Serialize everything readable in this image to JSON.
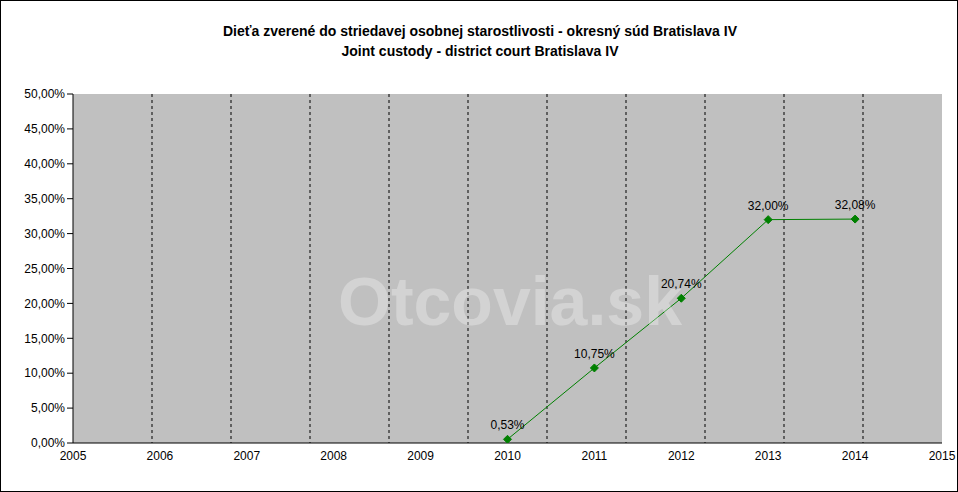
{
  "chart_data": {
    "type": "line",
    "title": "Dieťa zverené do striedavej osobnej starostlivosti - okresný súd Bratislava IV",
    "subtitle": "Joint custody - district court Bratislava IV",
    "watermark": "Otcovia.sk",
    "categories": [
      "2005",
      "2006",
      "2007",
      "2008",
      "2009",
      "2010",
      "2011",
      "2012",
      "2013",
      "2014",
      "2015"
    ],
    "values": [
      null,
      null,
      null,
      null,
      null,
      0.53,
      10.75,
      20.74,
      32.0,
      32.08,
      null
    ],
    "value_labels": [
      null,
      null,
      null,
      null,
      null,
      "0,53%",
      "10,75%",
      "20,74%",
      "32,00%",
      "32,08%",
      null
    ],
    "color": "#008000",
    "marker": "diamond",
    "data_labels": true,
    "grid": true,
    "ylim": [
      0,
      50
    ],
    "yticks": [
      {
        "value": 0,
        "label": "0,00%"
      },
      {
        "value": 5,
        "label": "5,00%"
      },
      {
        "value": 10,
        "label": "10,00%"
      },
      {
        "value": 15,
        "label": "15,00%"
      },
      {
        "value": 20,
        "label": "20,00%"
      },
      {
        "value": 25,
        "label": "25,00%"
      },
      {
        "value": 30,
        "label": "30,00%"
      },
      {
        "value": 35,
        "label": "35,00%"
      },
      {
        "value": 40,
        "label": "40,00%"
      },
      {
        "value": 45,
        "label": "45,00%"
      },
      {
        "value": 50,
        "label": "50,00%"
      }
    ]
  }
}
